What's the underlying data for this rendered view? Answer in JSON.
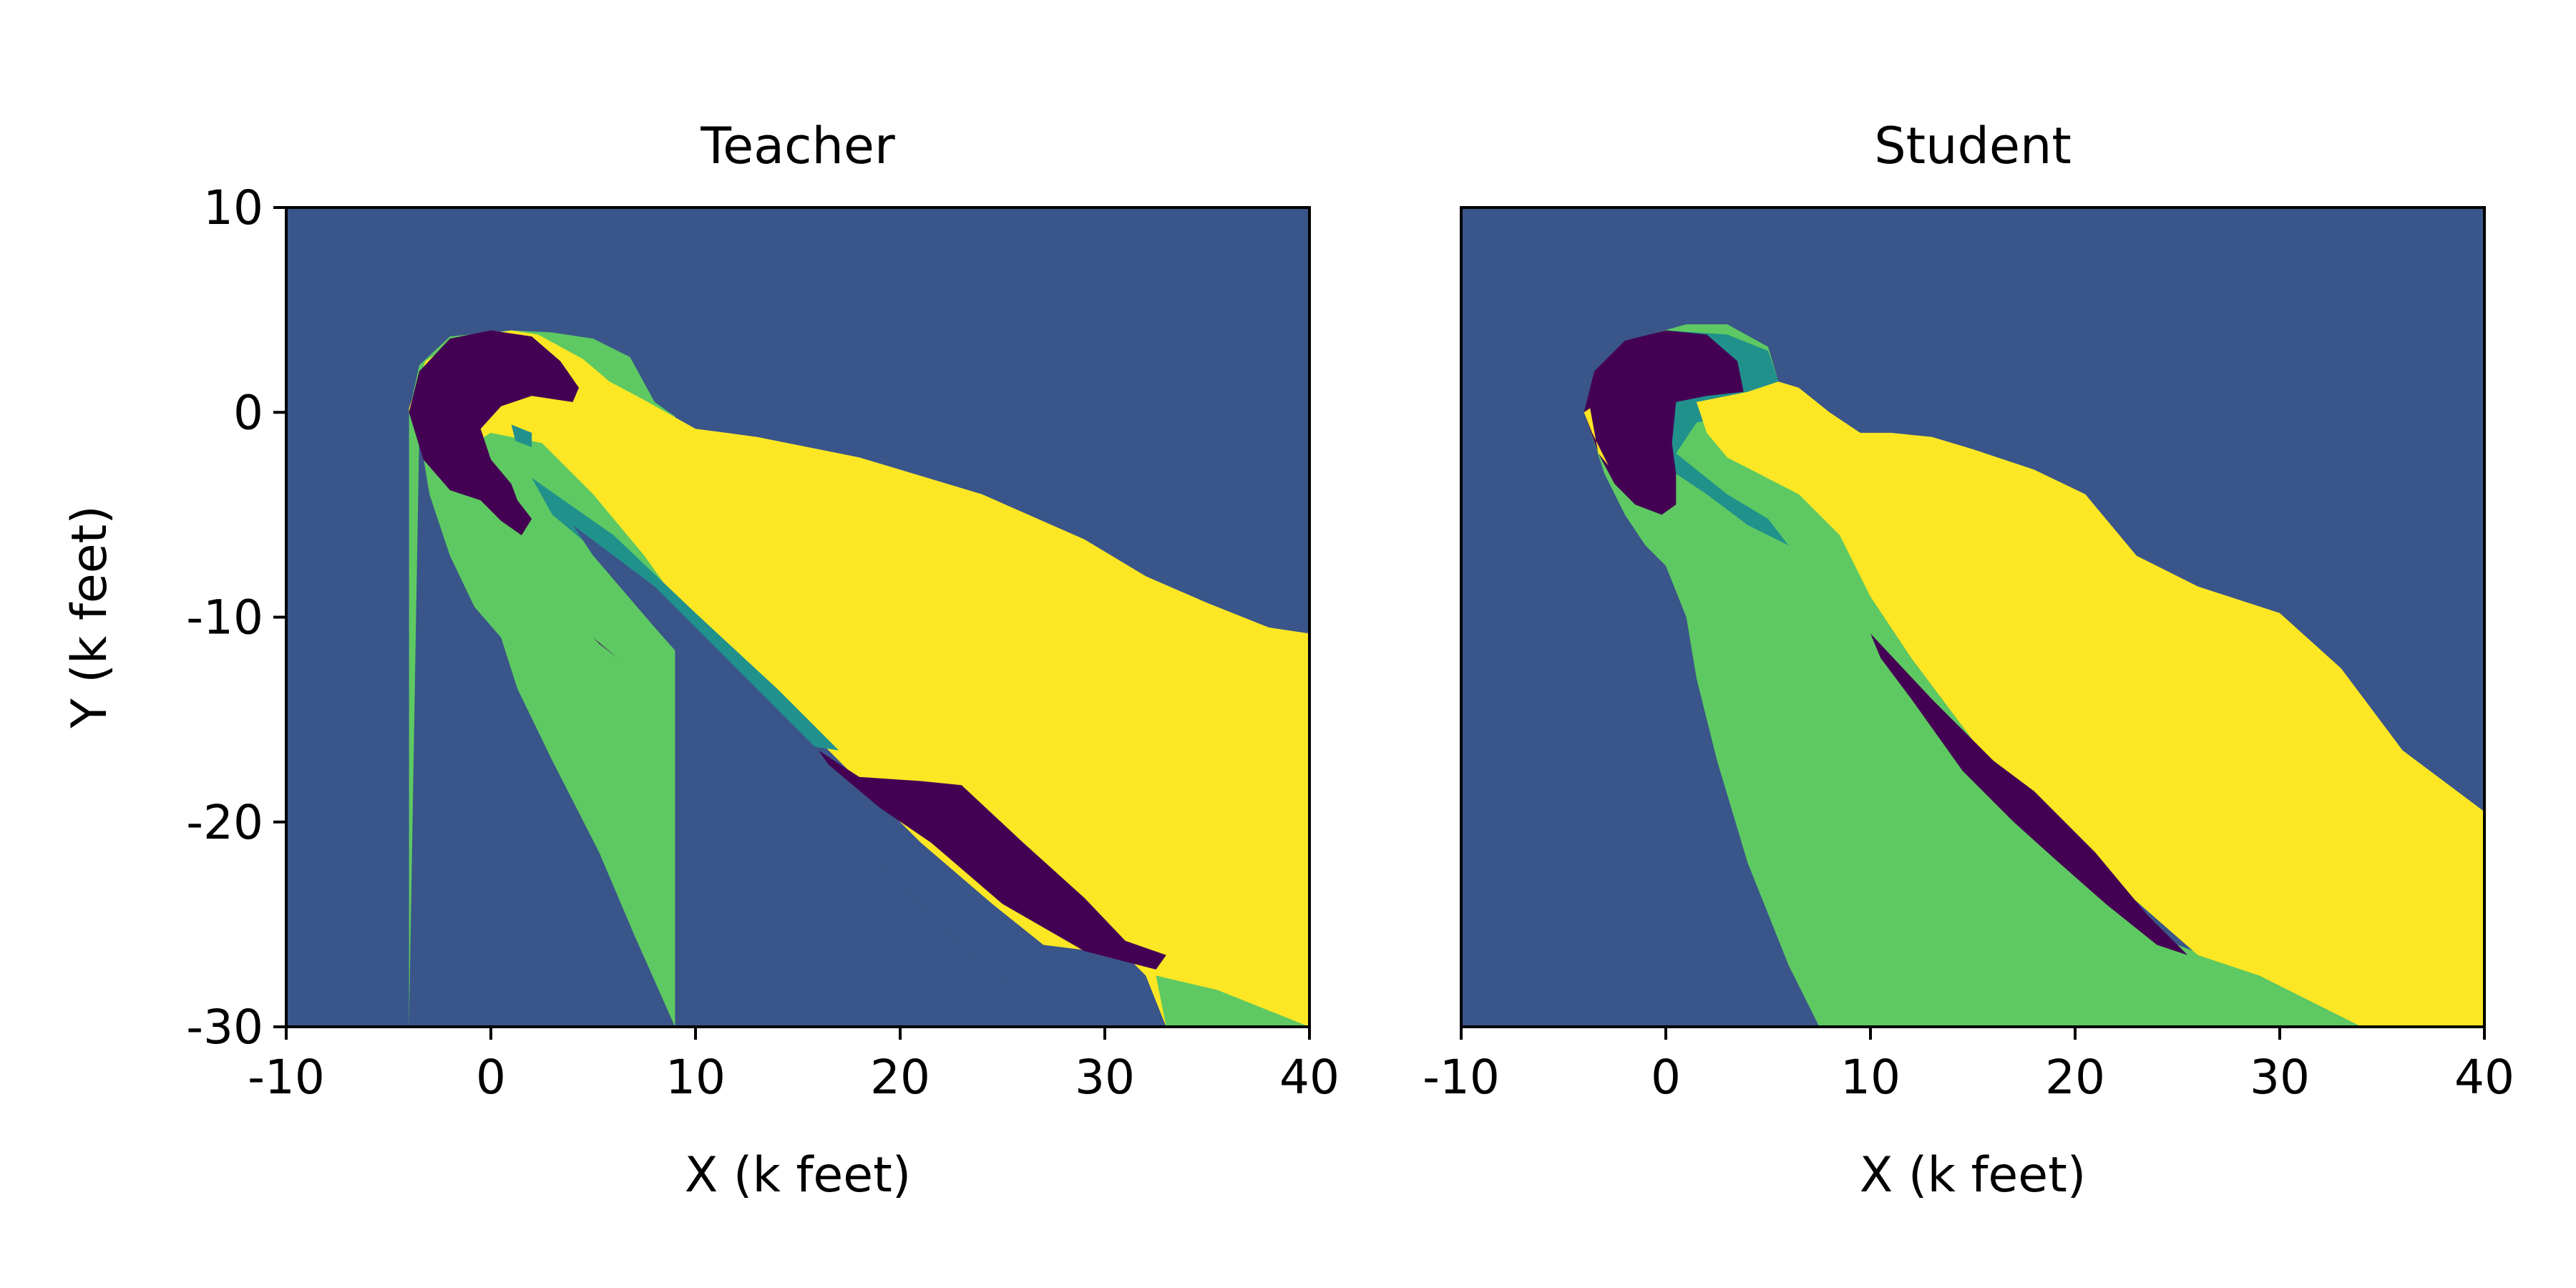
{
  "colors": {
    "background_class": "#3a5589",
    "green_class": "#5ec962",
    "teal_class": "#21918c",
    "yellow_class": "#fde725",
    "purple_class": "#440154"
  },
  "chart_data": [
    {
      "type": "heatmap",
      "title": "Teacher",
      "xlabel": "X (k feet)",
      "ylabel": "Y (k feet)",
      "xlim": [
        -10,
        40
      ],
      "ylim": [
        -30,
        10
      ],
      "xticks": [
        -10,
        0,
        10,
        20,
        30,
        40
      ],
      "xtick_labels": [
        "-10",
        "0",
        "10",
        "20",
        "30",
        "40"
      ],
      "yticks": [
        -30,
        -20,
        -10,
        0,
        10
      ],
      "ytick_labels": [
        "-30",
        "-20",
        "-10",
        "0",
        "10"
      ],
      "background": "background_class",
      "regions": [
        {
          "class": "green_class",
          "points": [
            [
              -4,
              0
            ],
            [
              -3.5,
              2.3
            ],
            [
              -2,
              3.7
            ],
            [
              1,
              4
            ],
            [
              3,
              3.9
            ],
            [
              5,
              3.6
            ],
            [
              6.8,
              2.7
            ],
            [
              8,
              0.5
            ],
            [
              9,
              -0.2
            ],
            [
              9,
              -30
            ],
            [
              -4,
              -30
            ]
          ]
        },
        {
          "class": "yellow_class",
          "points": [
            [
              -4,
              0.2
            ],
            [
              -3.2,
              2.5
            ],
            [
              -1.5,
              3.6
            ],
            [
              1,
              4
            ],
            [
              2.3,
              3.8
            ],
            [
              4.5,
              2.6
            ],
            [
              5.8,
              1.5
            ],
            [
              7.5,
              0.6
            ],
            [
              10,
              -0.8
            ],
            [
              13,
              -1.2
            ],
            [
              18,
              -2.2
            ],
            [
              24,
              -4
            ],
            [
              29,
              -6.2
            ],
            [
              32,
              -8
            ],
            [
              35,
              -9.3
            ],
            [
              38,
              -10.5
            ],
            [
              40,
              -10.8
            ],
            [
              40,
              -30
            ],
            [
              33,
              -30
            ],
            [
              32,
              -27.5
            ],
            [
              31,
              -26.5
            ],
            [
              27,
              -26
            ],
            [
              22,
              -22
            ],
            [
              17.5,
              -17.5
            ],
            [
              13.5,
              -13.5
            ],
            [
              10,
              -10.5
            ],
            [
              7.5,
              -7
            ],
            [
              5,
              -4
            ],
            [
              2.5,
              -1.5
            ],
            [
              0,
              -1
            ],
            [
              -2.5,
              -2.5
            ],
            [
              -4,
              0
            ]
          ]
        },
        {
          "class": "background_class",
          "points": [
            [
              -4,
              -30
            ],
            [
              -3.5,
              -1
            ],
            [
              -3,
              -4
            ],
            [
              -2,
              -7
            ],
            [
              -0.8,
              -9.5
            ],
            [
              0.5,
              -11
            ],
            [
              1.3,
              -13.5
            ],
            [
              3,
              -17
            ],
            [
              5.3,
              -21.5
            ],
            [
              7,
              -25.5
            ],
            [
              9,
              -30
            ]
          ]
        },
        {
          "class": "green_class",
          "points": [
            [
              32.5,
              -27.5
            ],
            [
              35.5,
              -28.2
            ],
            [
              38,
              -29.2
            ],
            [
              40,
              -30
            ],
            [
              33,
              -30
            ],
            [
              32.5,
              -27.5
            ]
          ]
        },
        {
          "class": "teal_class",
          "points": [
            [
              2,
              -3.2
            ],
            [
              6,
              -6
            ],
            [
              10,
              -9.8
            ],
            [
              14,
              -13.5
            ],
            [
              17,
              -16.5
            ],
            [
              15,
              -16.2
            ],
            [
              12,
              -13.5
            ],
            [
              9,
              -10.5
            ],
            [
              6,
              -7.5
            ],
            [
              3,
              -5
            ]
          ]
        },
        {
          "class": "background_class",
          "points": [
            [
              4,
              -5.5
            ],
            [
              8,
              -8.5
            ],
            [
              12,
              -12.5
            ],
            [
              17,
              -17.5
            ],
            [
              21,
              -21
            ],
            [
              24.5,
              -24
            ],
            [
              28,
              -27
            ],
            [
              31,
              -29
            ],
            [
              28,
              -29.5
            ],
            [
              24,
              -27
            ],
            [
              20,
              -23
            ],
            [
              16,
              -19
            ],
            [
              12,
              -15
            ],
            [
              8,
              -10.5
            ],
            [
              5,
              -7
            ]
          ]
        },
        {
          "class": "purple_class",
          "points": [
            [
              16,
              -16.5
            ],
            [
              18,
              -17.8
            ],
            [
              21,
              -18
            ],
            [
              23,
              -18.2
            ],
            [
              26,
              -21
            ],
            [
              29,
              -23.7
            ],
            [
              31,
              -25.8
            ],
            [
              33,
              -26.5
            ],
            [
              32.5,
              -27.2
            ],
            [
              29,
              -26.3
            ],
            [
              25,
              -24
            ],
            [
              21.5,
              -21
            ],
            [
              19,
              -19.3
            ],
            [
              16.5,
              -17.2
            ]
          ]
        },
        {
          "class": "purple_class",
          "points": [
            [
              -4,
              0
            ],
            [
              -3.5,
              2
            ],
            [
              -2,
              3.6
            ],
            [
              0,
              4
            ],
            [
              2,
              3.7
            ],
            [
              3.4,
              2.5
            ],
            [
              4.3,
              1.2
            ],
            [
              4,
              0.5
            ],
            [
              2,
              0.8
            ],
            [
              0.5,
              0.3
            ],
            [
              -0.5,
              -0.8
            ],
            [
              0,
              -2.3
            ],
            [
              1,
              -3.5
            ],
            [
              1.3,
              -4.3
            ],
            [
              2,
              -5.2
            ],
            [
              1.5,
              -6
            ],
            [
              0.5,
              -5.3
            ],
            [
              -0.5,
              -4.3
            ],
            [
              -2,
              -3.8
            ],
            [
              -3.3,
              -2.3
            ],
            [
              -4,
              0
            ]
          ]
        },
        {
          "class": "purple_class",
          "points": [
            [
              5,
              -11
            ],
            [
              6.2,
              -12
            ],
            [
              5.3,
              -11.3
            ]
          ]
        },
        {
          "class": "yellow_class",
          "points": [
            [
              2.5,
              -0.5
            ],
            [
              4,
              -1.8
            ],
            [
              5,
              -3.2
            ],
            [
              3,
              -1.8
            ],
            [
              2,
              -1
            ]
          ]
        },
        {
          "class": "teal_class",
          "points": [
            [
              1,
              -0.6
            ],
            [
              2,
              -1
            ],
            [
              2,
              -1.7
            ],
            [
              1.2,
              -1.4
            ]
          ]
        }
      ]
    },
    {
      "type": "heatmap",
      "title": "Student",
      "xlabel": "X (k feet)",
      "ylabel": "",
      "xlim": [
        -10,
        40
      ],
      "ylim": [
        -30,
        10
      ],
      "xticks": [
        -10,
        0,
        10,
        20,
        30,
        40
      ],
      "xtick_labels": [
        "-10",
        "0",
        "10",
        "20",
        "30",
        "40"
      ],
      "yticks": [],
      "ytick_labels": [],
      "background": "background_class",
      "regions": [
        {
          "class": "green_class",
          "points": [
            [
              -4,
              0
            ],
            [
              -3.5,
              2
            ],
            [
              -1.5,
              3.6
            ],
            [
              1,
              4.3
            ],
            [
              3,
              4.3
            ],
            [
              5,
              3.2
            ],
            [
              5.5,
              1.5
            ],
            [
              7,
              0
            ],
            [
              8,
              -2
            ],
            [
              8.5,
              -4
            ],
            [
              9.5,
              -7
            ],
            [
              10,
              -9
            ],
            [
              12,
              -12
            ],
            [
              15,
              -16
            ],
            [
              18,
              -19.5
            ],
            [
              22,
              -23
            ],
            [
              25,
              -26
            ],
            [
              29,
              -27.5
            ],
            [
              34,
              -30
            ],
            [
              7.5,
              -30
            ],
            [
              6,
              -27
            ],
            [
              4,
              -22
            ],
            [
              2.5,
              -17
            ],
            [
              1.5,
              -13
            ],
            [
              1,
              -10
            ],
            [
              0,
              -7.5
            ],
            [
              -1,
              -6.5
            ],
            [
              -2,
              -5
            ],
            [
              -3,
              -3
            ],
            [
              -4,
              0
            ]
          ]
        },
        {
          "class": "background_class",
          "points": [
            [
              -4,
              -30
            ],
            [
              -4,
              0
            ],
            [
              -3,
              -3
            ],
            [
              -2,
              -5
            ],
            [
              -1,
              -6.5
            ],
            [
              0,
              -7.5
            ],
            [
              1,
              -10
            ],
            [
              1.5,
              -13
            ],
            [
              2.5,
              -17
            ],
            [
              4,
              -22
            ],
            [
              6,
              -27
            ],
            [
              7.5,
              -30
            ]
          ]
        },
        {
          "class": "teal_class",
          "points": [
            [
              -2,
              3
            ],
            [
              0,
              4
            ],
            [
              3,
              3.8
            ],
            [
              5,
              3
            ],
            [
              5.5,
              1.5
            ],
            [
              6.5,
              0.5
            ],
            [
              1.5,
              -0.5
            ],
            [
              0.5,
              -2
            ],
            [
              3,
              -4
            ],
            [
              5,
              -5.2
            ],
            [
              6,
              -6.5
            ],
            [
              4,
              -5.5
            ],
            [
              2,
              -4
            ],
            [
              0.5,
              -3
            ],
            [
              -1,
              -4
            ],
            [
              -2,
              -2
            ],
            [
              -2.5,
              1
            ]
          ]
        },
        {
          "class": "yellow_class",
          "points": [
            [
              1.5,
              0.5
            ],
            [
              4,
              1
            ],
            [
              5.5,
              1.5
            ],
            [
              6.5,
              1.2
            ],
            [
              8,
              0
            ],
            [
              9.5,
              -1
            ],
            [
              11,
              -1
            ],
            [
              13,
              -1.2
            ],
            [
              15,
              -1.8
            ],
            [
              18,
              -2.8
            ],
            [
              20.5,
              -4
            ],
            [
              23,
              -7
            ],
            [
              26,
              -8.5
            ],
            [
              30,
              -9.8
            ],
            [
              33,
              -12.5
            ],
            [
              36,
              -16.5
            ],
            [
              40,
              -19.5
            ],
            [
              40,
              -30
            ],
            [
              34,
              -30
            ],
            [
              29,
              -27.5
            ],
            [
              26,
              -26.5
            ],
            [
              22,
              -23
            ],
            [
              18,
              -19.5
            ],
            [
              15,
              -16
            ],
            [
              12,
              -12
            ],
            [
              10,
              -9
            ],
            [
              8.5,
              -6
            ],
            [
              6.5,
              -4
            ],
            [
              3,
              -2.2
            ],
            [
              2,
              -1
            ]
          ]
        },
        {
          "class": "purple_class",
          "points": [
            [
              10,
              -10.8
            ],
            [
              13,
              -14
            ],
            [
              16,
              -17
            ],
            [
              18,
              -18.5
            ],
            [
              21,
              -21.5
            ],
            [
              23.5,
              -24.5
            ],
            [
              25.5,
              -26.5
            ],
            [
              24,
              -26
            ],
            [
              21.5,
              -24
            ],
            [
              19,
              -21.8
            ],
            [
              17,
              -20
            ],
            [
              14.5,
              -17.5
            ],
            [
              12,
              -14
            ],
            [
              10.5,
              -12
            ]
          ]
        },
        {
          "class": "purple_class",
          "points": [
            [
              -4,
              0
            ],
            [
              -3.5,
              2
            ],
            [
              -2,
              3.5
            ],
            [
              0,
              4
            ],
            [
              2,
              3.8
            ],
            [
              3.5,
              2.5
            ],
            [
              3.8,
              1
            ],
            [
              2,
              0.8
            ],
            [
              0.5,
              0.5
            ],
            [
              0.3,
              -1.5
            ],
            [
              0.5,
              -3
            ],
            [
              0.5,
              -4.5
            ],
            [
              -0.2,
              -5
            ],
            [
              -1.5,
              -4.5
            ],
            [
              -2.5,
              -3.5
            ],
            [
              -3.3,
              -2
            ],
            [
              -4,
              0
            ]
          ]
        },
        {
          "class": "yellow_class",
          "points": [
            [
              -4,
              0
            ],
            [
              -3.7,
              0.2
            ],
            [
              -3.3,
              -2
            ],
            [
              -2.8,
              -2.6
            ],
            [
              -3.6,
              -1
            ]
          ]
        }
      ]
    }
  ]
}
